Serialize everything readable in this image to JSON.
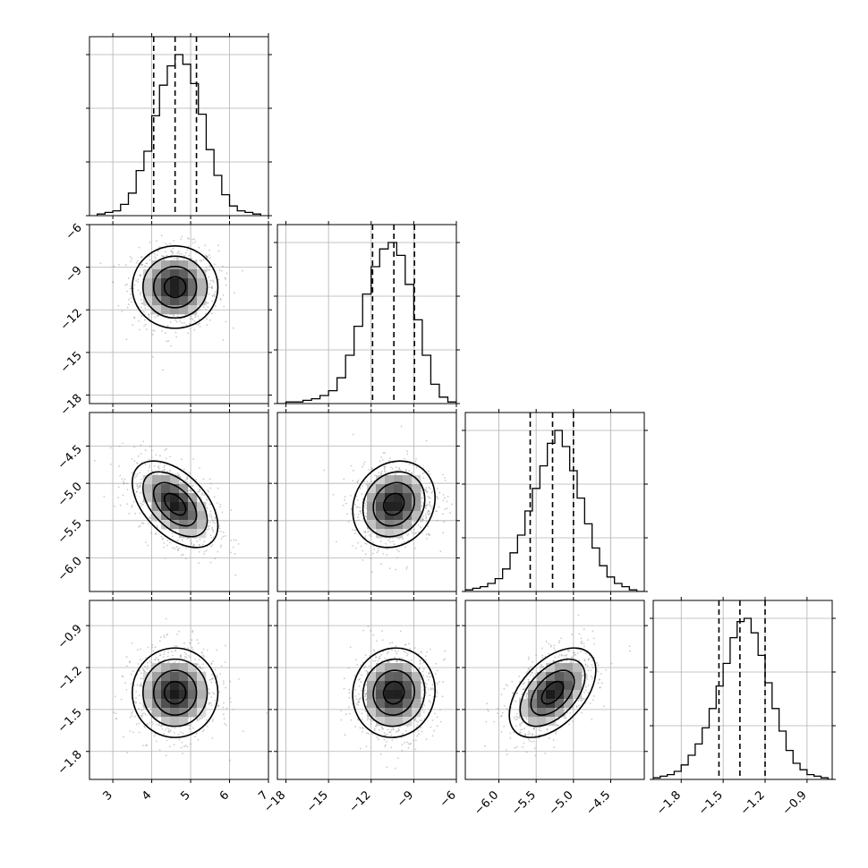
{
  "chart_data": {
    "type": "corner",
    "parameters": [
      {
        "range": [
          2.4,
          7.0
        ],
        "ticks": [
          3,
          4,
          5,
          6,
          7
        ],
        "tick_labels": [
          "3",
          "4",
          "5",
          "6",
          "7"
        ],
        "quantiles": [
          4.05,
          4.6,
          5.15
        ],
        "mean": 4.6,
        "std": 0.55,
        "hist_bins": [
          2.6,
          2.8,
          3.0,
          3.2,
          3.4,
          3.6,
          3.8,
          4.0,
          4.2,
          4.4,
          4.6,
          4.8,
          5.0,
          5.2,
          5.4,
          5.6,
          5.8,
          6.0,
          6.2,
          6.4,
          6.6,
          6.8
        ],
        "hist_counts": [
          1,
          2,
          3,
          7,
          14,
          28,
          40,
          62,
          81,
          93,
          100,
          94,
          82,
          63,
          41,
          25,
          13,
          6,
          3,
          2,
          1
        ]
      },
      {
        "range": [
          -18.6,
          -6.0
        ],
        "ticks": [
          -18,
          -15,
          -12,
          -9,
          -6
        ],
        "tick_labels": [
          "−18",
          "−15",
          "−12",
          "−9",
          "−6"
        ],
        "quantiles": [
          -11.9,
          -10.4,
          -8.95
        ],
        "mean": -10.4,
        "std": 1.45,
        "hist_bins": [
          -18.6,
          -18.0,
          -17.4,
          -16.8,
          -16.2,
          -15.6,
          -15.0,
          -14.4,
          -13.8,
          -13.2,
          -12.6,
          -12.0,
          -11.4,
          -10.8,
          -10.2,
          -9.6,
          -9.0,
          -8.4,
          -7.8,
          -7.2,
          -6.6,
          -6.0
        ],
        "hist_counts": [
          0,
          1,
          1,
          2,
          3,
          5,
          8,
          16,
          30,
          48,
          68,
          85,
          96,
          100,
          92,
          74,
          52,
          30,
          12,
          4,
          1
        ]
      },
      {
        "range": [
          -6.45,
          -4.05
        ],
        "ticks": [
          -6.0,
          -5.5,
          -5.0,
          -4.5
        ],
        "tick_labels": [
          "−6.0",
          "−5.5",
          "−5.0",
          "−4.5"
        ],
        "quantiles": [
          -5.58,
          -5.28,
          -5.0
        ],
        "mean": -5.28,
        "std": 0.29,
        "hist_bins": [
          -6.45,
          -6.35,
          -6.25,
          -6.15,
          -6.05,
          -5.95,
          -5.85,
          -5.75,
          -5.65,
          -5.55,
          -5.45,
          -5.35,
          -5.25,
          -5.15,
          -5.05,
          -4.95,
          -4.85,
          -4.75,
          -4.65,
          -4.55,
          -4.45,
          -4.35,
          -4.25,
          -4.15,
          -4.05
        ],
        "hist_counts": [
          1,
          2,
          3,
          5,
          8,
          14,
          24,
          35,
          50,
          64,
          78,
          92,
          100,
          90,
          75,
          58,
          42,
          27,
          16,
          9,
          5,
          3,
          1,
          0
        ]
      },
      {
        "range": [
          -2.0,
          -0.72
        ],
        "ticks": [
          -1.8,
          -1.5,
          -1.2,
          -0.9
        ],
        "tick_labels": [
          "−1.8",
          "−1.5",
          "−1.2",
          "−0.9"
        ],
        "quantiles": [
          -1.53,
          -1.38,
          -1.2
        ],
        "mean": -1.38,
        "std": 0.16,
        "hist_bins": [
          -2.0,
          -1.95,
          -1.9,
          -1.85,
          -1.8,
          -1.75,
          -1.7,
          -1.65,
          -1.6,
          -1.55,
          -1.5,
          -1.45,
          -1.4,
          -1.35,
          -1.3,
          -1.25,
          -1.2,
          -1.15,
          -1.1,
          -1.05,
          -1.0,
          -0.95,
          -0.9,
          -0.85,
          -0.8,
          -0.75,
          -0.72
        ],
        "hist_counts": [
          1,
          2,
          3,
          5,
          9,
          15,
          22,
          32,
          44,
          58,
          72,
          88,
          98,
          100,
          91,
          77,
          60,
          44,
          30,
          18,
          10,
          6,
          3,
          2,
          1,
          0
        ]
      }
    ],
    "hist_ticks_fraction": [
      0.0,
      0.3,
      0.6,
      0.9
    ],
    "correlations": [
      [
        1,
        0,
        -0.5,
        0.0
      ],
      [
        0,
        1,
        0.15,
        0.05
      ],
      [
        -0.5,
        0.15,
        1,
        0.5
      ],
      [
        0.0,
        0.05,
        0.5,
        1
      ]
    ],
    "grid": true,
    "contour_levels_sigma": [
      0.5,
      1.0,
      1.5,
      2.0
    ]
  }
}
